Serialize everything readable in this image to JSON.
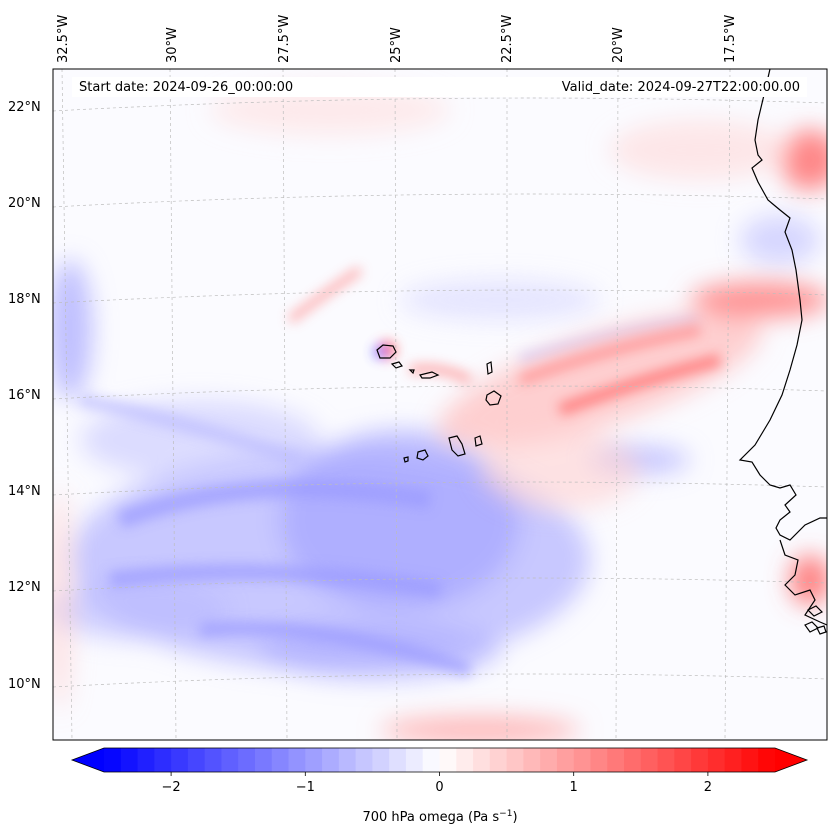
{
  "header": {
    "start_date": "Start date: 2024-09-26_00:00:00",
    "valid_date": "Valid_date: 2024-09-27T22:00:00.00"
  },
  "map": {
    "projection": "lambert-conformal",
    "grid": true,
    "lon_labels": [
      "32.5°W",
      "30°W",
      "27.5°W",
      "25°W",
      "22.5°W",
      "20°W",
      "17.5°W"
    ],
    "lat_labels": [
      "22°N",
      "20°N",
      "18°N",
      "16°N",
      "14°N",
      "12°N",
      "10°N"
    ]
  },
  "colorbar": {
    "title_main": "700 hPa omega (Pa s",
    "title_exp": "−1",
    "title_end": ")",
    "ticks": [
      "−2",
      "−1",
      "0",
      "1",
      "2"
    ],
    "tick_values": [
      -2,
      -1,
      0,
      1,
      2
    ],
    "range": [
      -2.5,
      2.5
    ],
    "extend": "both",
    "low_color": "#0000ff",
    "mid_color": "#ffffff",
    "high_color": "#ff0000",
    "levels": 40
  }
}
